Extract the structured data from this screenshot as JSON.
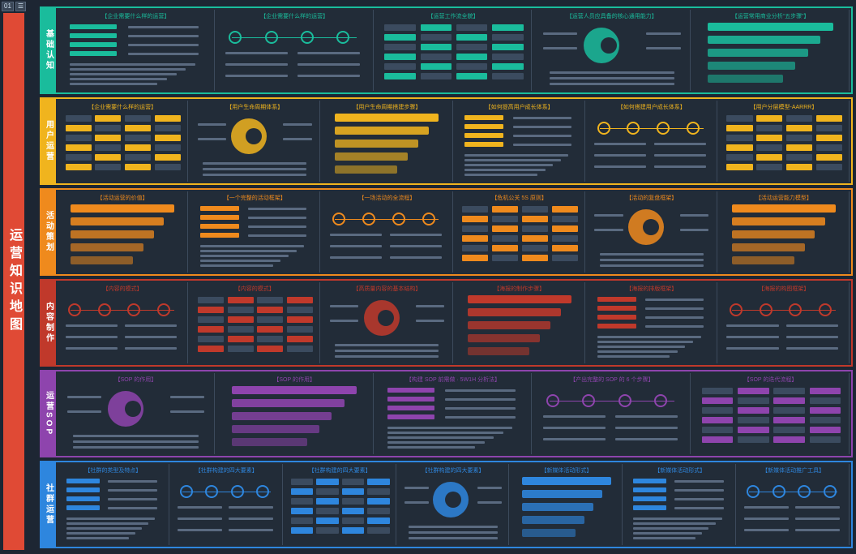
{
  "toolbar": {
    "page_label": "01",
    "menu_label": "☰"
  },
  "title": "运营知识地图",
  "colors": {
    "red": "#e04a35",
    "green": "#1abc9c",
    "yellow": "#f0b41e",
    "orange": "#ef8a1d",
    "brown": "#c0392b",
    "purple": "#8e44ad",
    "blue": "#2e86de",
    "bg": "#1d2633"
  },
  "rows": [
    {
      "label": "基础认知",
      "color": "#1abc9c",
      "titles": [
        "【企业需要什么样的运营】",
        "【企业需要什么样的运营】",
        "【运营工作流全貌】",
        "【运营人员应具备的核心通用能力】",
        "【运营常用商业分析“五步骤”】"
      ]
    },
    {
      "label": "用户运营",
      "color": "#f0b41e",
      "titles": [
        "【企业需要什么样的运营】",
        "【用户生命周期体系】",
        "【用户生命周期搭建步骤】",
        "【如何提高用户成长体系】",
        "【如何搭建用户成长体系】",
        "【用户分层模型-AARRR】"
      ]
    },
    {
      "label": "活动策划",
      "color": "#ef8a1d",
      "titles": [
        "【活动运营的价值】",
        "【一个完整的活动框架】",
        "【一场活动的全流程】",
        "【危机公关 5S 原则】",
        "【活动的复盘框架】",
        "【活动运营能力模型】"
      ]
    },
    {
      "label": "内容制作",
      "color": "#c0392b",
      "titles": [
        "【内容的模式】",
        "【内容的模式】",
        "【高质量内容的基本结构】",
        "【海报的制作步骤】",
        "【海报的排版框架】",
        "【海报的构图框架】"
      ]
    },
    {
      "label": "运营SOP",
      "color": "#8e44ad",
      "titles": [
        "【SOP 的作用】",
        "【SOP 的作用】",
        "【构建 SOP 前需做 · 5W1H 分析法】",
        "【产出完整的 SOP 的 6 个步骤】",
        "【SOP 的迭代流程】"
      ]
    },
    {
      "label": "社群运营",
      "color": "#2e86de",
      "titles": [
        "【社群的类型及特点】",
        "【社群构建的四大要素】",
        "【社群构建的四大要素】",
        "【社群构建的四大要素】",
        "【新媒体活动形式】",
        "【新媒体活动形式】",
        "【新媒体活动推广工具】"
      ]
    }
  ]
}
